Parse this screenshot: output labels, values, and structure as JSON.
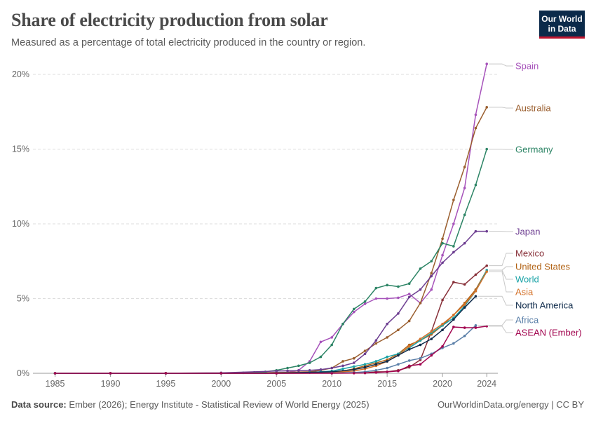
{
  "header": {
    "title": "Share of electricity production from solar",
    "subtitle": "Measured as a percentage of total electricity produced in the country or region.",
    "logo_line1": "Our World",
    "logo_line2": "in Data"
  },
  "footer": {
    "source_label": "Data source:",
    "source_text": "Ember (2026); Energy Institute - Statistical Review of World Energy (2025)",
    "credit": "OurWorldinData.org/energy | CC BY"
  },
  "chart_data": {
    "type": "line",
    "title": "Share of electricity production from solar",
    "ylim": [
      0,
      21
    ],
    "xlim": [
      1983,
      2025
    ],
    "y_ticks": [
      0,
      5,
      10,
      15,
      20
    ],
    "y_tick_labels": [
      "0%",
      "5%",
      "10%",
      "15%",
      "20%"
    ],
    "x_ticks": [
      1985,
      1990,
      1995,
      2000,
      2005,
      2010,
      2015,
      2020,
      2024
    ],
    "x_tick_labels": [
      "1985",
      "1990",
      "1995",
      "2000",
      "2005",
      "2010",
      "2015",
      "2020",
      "2024"
    ],
    "grid": "horizontal dashed",
    "legend": "labels at right end of lines",
    "series": [
      {
        "name": "Spain",
        "color": "#a652ba",
        "points": [
          [
            1985,
            0
          ],
          [
            1990,
            0
          ],
          [
            1995,
            0
          ],
          [
            2000,
            0
          ],
          [
            2004,
            0.03
          ],
          [
            2005,
            0.06
          ],
          [
            2006,
            0.07
          ],
          [
            2007,
            0.2
          ],
          [
            2008,
            0.8
          ],
          [
            2009,
            2.1
          ],
          [
            2010,
            2.4
          ],
          [
            2011,
            3.3
          ],
          [
            2012,
            4.1
          ],
          [
            2013,
            4.65
          ],
          [
            2014,
            5.0
          ],
          [
            2015,
            5.0
          ],
          [
            2016,
            5.05
          ],
          [
            2017,
            5.3
          ],
          [
            2018,
            4.7
          ],
          [
            2019,
            5.6
          ],
          [
            2020,
            7.9
          ],
          [
            2021,
            10.0
          ],
          [
            2022,
            12.4
          ],
          [
            2023,
            17.3
          ],
          [
            2024,
            20.7
          ]
        ]
      },
      {
        "name": "Australia",
        "color": "#9a5e2e",
        "points": [
          [
            1985,
            0
          ],
          [
            1990,
            0
          ],
          [
            1995,
            0.01
          ],
          [
            2000,
            0.02
          ],
          [
            2005,
            0.05
          ],
          [
            2008,
            0.1
          ],
          [
            2009,
            0.2
          ],
          [
            2010,
            0.35
          ],
          [
            2011,
            0.8
          ],
          [
            2012,
            1.0
          ],
          [
            2013,
            1.5
          ],
          [
            2014,
            2.0
          ],
          [
            2015,
            2.4
          ],
          [
            2016,
            2.9
          ],
          [
            2017,
            3.5
          ],
          [
            2018,
            4.7
          ],
          [
            2019,
            6.7
          ],
          [
            2020,
            9.0
          ],
          [
            2021,
            11.6
          ],
          [
            2022,
            13.8
          ],
          [
            2023,
            16.4
          ],
          [
            2024,
            17.8
          ]
        ]
      },
      {
        "name": "Germany",
        "color": "#2c8465",
        "points": [
          [
            1985,
            0
          ],
          [
            1990,
            0
          ],
          [
            1995,
            0
          ],
          [
            2000,
            0.01
          ],
          [
            2002,
            0.03
          ],
          [
            2003,
            0.06
          ],
          [
            2004,
            0.1
          ],
          [
            2005,
            0.2
          ],
          [
            2006,
            0.35
          ],
          [
            2007,
            0.5
          ],
          [
            2008,
            0.7
          ],
          [
            2009,
            1.1
          ],
          [
            2010,
            1.9
          ],
          [
            2011,
            3.3
          ],
          [
            2012,
            4.3
          ],
          [
            2013,
            4.8
          ],
          [
            2014,
            5.7
          ],
          [
            2015,
            5.9
          ],
          [
            2016,
            5.8
          ],
          [
            2017,
            6.0
          ],
          [
            2018,
            7.0
          ],
          [
            2019,
            7.5
          ],
          [
            2020,
            8.7
          ],
          [
            2021,
            8.5
          ],
          [
            2022,
            10.6
          ],
          [
            2023,
            12.6
          ],
          [
            2024,
            15.0
          ]
        ]
      },
      {
        "name": "Japan",
        "color": "#6d3e91",
        "points": [
          [
            1985,
            0
          ],
          [
            1990,
            0.01
          ],
          [
            1995,
            0.01
          ],
          [
            2000,
            0.03
          ],
          [
            2005,
            0.15
          ],
          [
            2006,
            0.17
          ],
          [
            2007,
            0.18
          ],
          [
            2008,
            0.2
          ],
          [
            2009,
            0.25
          ],
          [
            2010,
            0.35
          ],
          [
            2011,
            0.5
          ],
          [
            2012,
            0.7
          ],
          [
            2013,
            1.3
          ],
          [
            2014,
            2.2
          ],
          [
            2015,
            3.3
          ],
          [
            2016,
            4.0
          ],
          [
            2017,
            5.1
          ],
          [
            2018,
            5.6
          ],
          [
            2019,
            6.5
          ],
          [
            2020,
            7.4
          ],
          [
            2021,
            8.1
          ],
          [
            2022,
            8.7
          ],
          [
            2023,
            9.5
          ],
          [
            2024,
            9.5
          ]
        ]
      },
      {
        "name": "Mexico",
        "color": "#883039",
        "points": [
          [
            1985,
            0
          ],
          [
            1990,
            0
          ],
          [
            1995,
            0
          ],
          [
            2000,
            0
          ],
          [
            2005,
            0
          ],
          [
            2010,
            0.01
          ],
          [
            2013,
            0.03
          ],
          [
            2014,
            0.1
          ],
          [
            2015,
            0.1
          ],
          [
            2016,
            0.2
          ],
          [
            2017,
            0.4
          ],
          [
            2018,
            0.9
          ],
          [
            2019,
            2.8
          ],
          [
            2020,
            4.9
          ],
          [
            2021,
            6.1
          ],
          [
            2022,
            5.95
          ],
          [
            2023,
            6.6
          ],
          [
            2024,
            7.2
          ]
        ]
      },
      {
        "name": "United States",
        "color": "#b16214",
        "points": [
          [
            1985,
            0
          ],
          [
            1990,
            0.01
          ],
          [
            1995,
            0.01
          ],
          [
            2000,
            0.01
          ],
          [
            2005,
            0.02
          ],
          [
            2008,
            0.05
          ],
          [
            2009,
            0.06
          ],
          [
            2010,
            0.1
          ],
          [
            2011,
            0.15
          ],
          [
            2012,
            0.3
          ],
          [
            2013,
            0.5
          ],
          [
            2014,
            0.7
          ],
          [
            2015,
            0.9
          ],
          [
            2016,
            1.3
          ],
          [
            2017,
            1.9
          ],
          [
            2018,
            2.2
          ],
          [
            2019,
            2.6
          ],
          [
            2020,
            3.2
          ],
          [
            2021,
            3.9
          ],
          [
            2022,
            4.7
          ],
          [
            2023,
            5.6
          ],
          [
            2024,
            6.9
          ]
        ]
      },
      {
        "name": "World",
        "color": "#1ba3a7",
        "points": [
          [
            1985,
            0
          ],
          [
            1990,
            0
          ],
          [
            1995,
            0
          ],
          [
            2000,
            0
          ],
          [
            2005,
            0.02
          ],
          [
            2008,
            0.05
          ],
          [
            2009,
            0.1
          ],
          [
            2010,
            0.15
          ],
          [
            2011,
            0.3
          ],
          [
            2012,
            0.45
          ],
          [
            2013,
            0.6
          ],
          [
            2014,
            0.8
          ],
          [
            2015,
            1.1
          ],
          [
            2016,
            1.3
          ],
          [
            2017,
            1.7
          ],
          [
            2018,
            2.2
          ],
          [
            2019,
            2.7
          ],
          [
            2020,
            3.2
          ],
          [
            2021,
            3.7
          ],
          [
            2022,
            4.5
          ],
          [
            2023,
            5.5
          ],
          [
            2024,
            6.9
          ]
        ]
      },
      {
        "name": "Asia",
        "color": "#d4722a",
        "points": [
          [
            1985,
            0
          ],
          [
            1990,
            0
          ],
          [
            1995,
            0
          ],
          [
            2000,
            0
          ],
          [
            2005,
            0
          ],
          [
            2010,
            0.05
          ],
          [
            2012,
            0.15
          ],
          [
            2013,
            0.3
          ],
          [
            2014,
            0.5
          ],
          [
            2015,
            0.8
          ],
          [
            2016,
            1.2
          ],
          [
            2017,
            1.8
          ],
          [
            2018,
            2.3
          ],
          [
            2019,
            2.8
          ],
          [
            2020,
            3.3
          ],
          [
            2021,
            3.9
          ],
          [
            2022,
            4.6
          ],
          [
            2023,
            5.5
          ],
          [
            2024,
            6.8
          ]
        ]
      },
      {
        "name": "North America",
        "color": "#0e2a4a",
        "points": [
          [
            1985,
            0
          ],
          [
            1990,
            0
          ],
          [
            1995,
            0
          ],
          [
            2000,
            0
          ],
          [
            2005,
            0.01
          ],
          [
            2010,
            0.1
          ],
          [
            2012,
            0.25
          ],
          [
            2013,
            0.4
          ],
          [
            2014,
            0.6
          ],
          [
            2015,
            0.8
          ],
          [
            2016,
            1.2
          ],
          [
            2017,
            1.6
          ],
          [
            2018,
            1.9
          ],
          [
            2019,
            2.3
          ],
          [
            2020,
            2.9
          ],
          [
            2021,
            3.6
          ],
          [
            2022,
            4.4
          ],
          [
            2023,
            5.15
          ]
        ]
      },
      {
        "name": "Africa",
        "color": "#5a7fa8",
        "points": [
          [
            1985,
            0
          ],
          [
            1990,
            0
          ],
          [
            1995,
            0
          ],
          [
            2000,
            0
          ],
          [
            2005,
            0
          ],
          [
            2010,
            0.02
          ],
          [
            2012,
            0.05
          ],
          [
            2013,
            0.1
          ],
          [
            2014,
            0.2
          ],
          [
            2015,
            0.35
          ],
          [
            2016,
            0.6
          ],
          [
            2017,
            0.85
          ],
          [
            2018,
            1.0
          ],
          [
            2019,
            1.3
          ],
          [
            2020,
            1.7
          ],
          [
            2021,
            2.0
          ],
          [
            2022,
            2.5
          ],
          [
            2023,
            3.2
          ]
        ]
      },
      {
        "name": "ASEAN (Ember)",
        "color": "#a2054f",
        "points": [
          [
            1985,
            0
          ],
          [
            1990,
            0
          ],
          [
            1995,
            0
          ],
          [
            2000,
            0
          ],
          [
            2005,
            0
          ],
          [
            2010,
            0
          ],
          [
            2012,
            0.01
          ],
          [
            2013,
            0.02
          ],
          [
            2014,
            0.05
          ],
          [
            2015,
            0.1
          ],
          [
            2016,
            0.15
          ],
          [
            2017,
            0.5
          ],
          [
            2018,
            0.6
          ],
          [
            2019,
            1.2
          ],
          [
            2020,
            1.8
          ],
          [
            2021,
            3.1
          ],
          [
            2022,
            3.05
          ],
          [
            2023,
            3.05
          ],
          [
            2024,
            3.15
          ]
        ]
      }
    ]
  }
}
